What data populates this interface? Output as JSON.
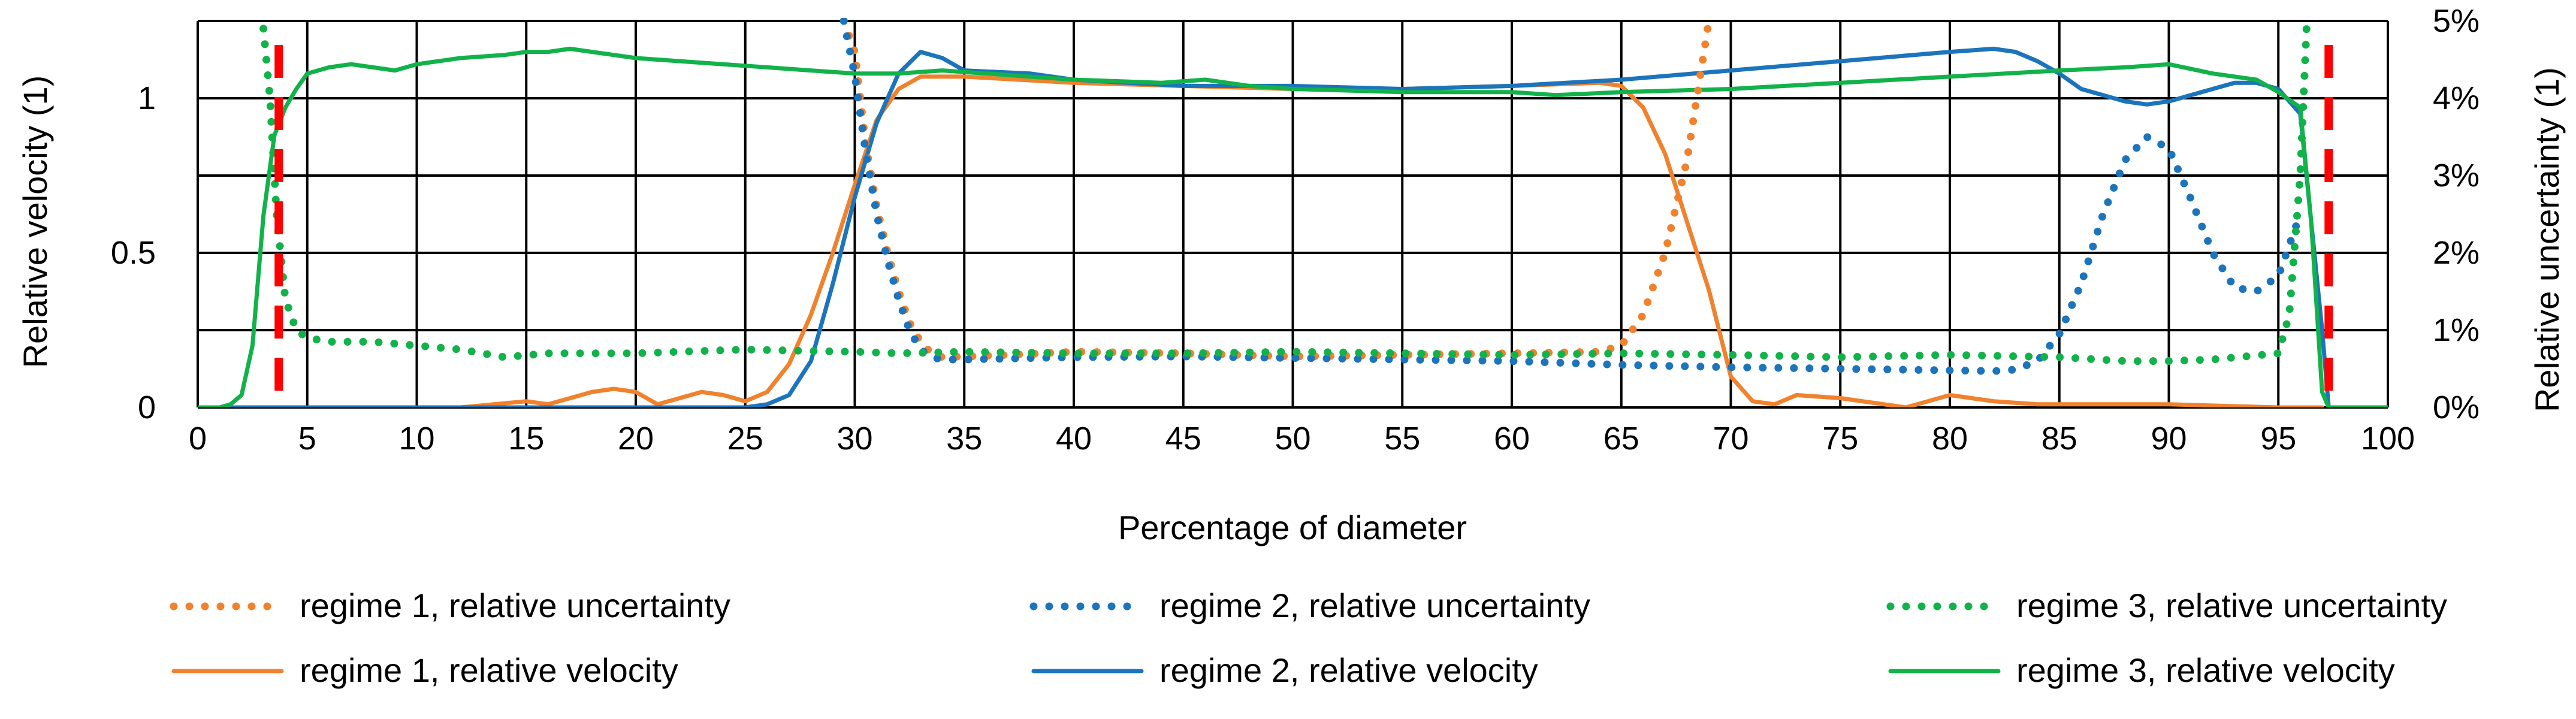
{
  "chart_data": {
    "type": "line",
    "title": "",
    "xlabel": "Percentage of diameter",
    "ylabel": "Relative velocity (1)",
    "y2label": "Relative uncertainty (1)",
    "xlim": [
      0,
      100
    ],
    "ylim": [
      0,
      1.25
    ],
    "y2lim": [
      0,
      5
    ],
    "x_ticks": [
      "0",
      "5",
      "10",
      "15",
      "20",
      "25",
      "30",
      "35",
      "40",
      "45",
      "50",
      "55",
      "60",
      "65",
      "70",
      "75",
      "80",
      "85",
      "90",
      "95",
      "100"
    ],
    "y_ticks": [
      "0",
      "0.5",
      "1"
    ],
    "y2_ticks": [
      "0%",
      "1%",
      "2%",
      "3%",
      "4%",
      "5%"
    ],
    "grid": true,
    "colors": {
      "regime1": "#F0822E",
      "regime2": "#1B74BC",
      "regime3": "#12B24A",
      "boundary": "#FF0000"
    },
    "boundary_lines_x": [
      3.7,
      97.3
    ],
    "legend": [
      "regime 1, relative uncertainty",
      "regime 2, relative uncertainty",
      "regime 3, relative uncertainty",
      "regime 1, relative velocity",
      "regime 2, relative velocity",
      "regime 3, relative velocity"
    ],
    "series": [
      {
        "name": "regime 1, relative velocity",
        "axis": "primary",
        "style": "solid",
        "color_key": "regime1",
        "x": [
          0,
          12,
          13.5,
          15,
          16,
          17,
          18,
          19,
          20,
          21,
          22,
          23,
          24,
          25,
          26,
          27,
          28,
          29,
          30,
          31,
          32,
          33,
          34,
          35,
          40,
          45,
          50,
          55,
          60,
          64,
          65,
          66,
          67,
          68,
          69,
          70,
          71,
          72,
          73,
          75,
          77,
          78,
          79,
          80,
          82,
          84,
          86,
          90,
          95,
          97
        ],
        "y": [
          0,
          0,
          0.01,
          0.02,
          0.01,
          0.03,
          0.05,
          0.06,
          0.05,
          0.01,
          0.03,
          0.05,
          0.04,
          0.02,
          0.05,
          0.14,
          0.3,
          0.5,
          0.72,
          0.93,
          1.03,
          1.07,
          1.07,
          1.07,
          1.05,
          1.04,
          1.03,
          1.03,
          1.04,
          1.05,
          1.04,
          0.97,
          0.82,
          0.6,
          0.38,
          0.1,
          0.02,
          0.01,
          0.04,
          0.03,
          0.01,
          0,
          0.02,
          0.04,
          0.02,
          0.01,
          0.01,
          0.01,
          0,
          0
        ]
      },
      {
        "name": "regime 2, relative velocity",
        "axis": "primary",
        "style": "solid",
        "color_key": "regime2",
        "x": [
          0,
          25,
          26,
          27,
          28,
          29,
          30,
          31,
          32,
          33,
          34,
          35,
          38,
          40,
          45,
          50,
          55,
          60,
          65,
          70,
          75,
          80,
          82,
          83,
          84,
          85,
          86,
          88,
          89,
          90,
          92,
          93,
          94,
          95,
          96,
          96.5,
          97,
          97.3
        ],
        "y": [
          0,
          0,
          0.01,
          0.04,
          0.15,
          0.4,
          0.68,
          0.92,
          1.08,
          1.15,
          1.13,
          1.09,
          1.08,
          1.06,
          1.04,
          1.04,
          1.03,
          1.04,
          1.06,
          1.09,
          1.12,
          1.15,
          1.16,
          1.15,
          1.12,
          1.08,
          1.03,
          0.99,
          0.98,
          0.99,
          1.03,
          1.05,
          1.05,
          1.03,
          0.95,
          0.6,
          0.25,
          0
        ]
      },
      {
        "name": "regime 3, relative velocity",
        "axis": "primary",
        "style": "solid",
        "color_key": "regime3",
        "x": [
          0,
          1,
          1.5,
          2,
          2.5,
          3,
          3.5,
          4,
          4.5,
          5,
          6,
          7,
          8,
          9,
          10,
          12,
          14,
          15,
          16,
          17,
          18,
          20,
          22,
          24,
          26,
          28,
          30,
          32,
          34,
          36,
          38,
          40,
          44,
          46,
          48,
          50,
          55,
          60,
          62,
          65,
          70,
          75,
          80,
          85,
          88,
          90,
          92,
          94,
          95,
          96,
          96.5,
          97,
          97.3,
          98,
          100
        ],
        "y": [
          0,
          0,
          0.01,
          0.04,
          0.2,
          0.62,
          0.88,
          0.97,
          1.03,
          1.08,
          1.1,
          1.11,
          1.1,
          1.09,
          1.11,
          1.13,
          1.14,
          1.15,
          1.15,
          1.16,
          1.15,
          1.13,
          1.12,
          1.11,
          1.1,
          1.09,
          1.08,
          1.08,
          1.09,
          1.08,
          1.07,
          1.06,
          1.05,
          1.06,
          1.04,
          1.03,
          1.02,
          1.02,
          1.01,
          1.02,
          1.03,
          1.05,
          1.07,
          1.09,
          1.1,
          1.11,
          1.08,
          1.06,
          1.02,
          0.97,
          0.6,
          0.05,
          0,
          0,
          0
        ]
      },
      {
        "name": "regime 1, relative uncertainty",
        "axis": "secondary",
        "style": "dotted",
        "color_key": "regime1",
        "x": [
          29.5,
          30,
          30.5,
          31,
          31.5,
          32,
          32.5,
          33,
          33.5,
          34,
          35,
          37,
          40,
          45,
          50,
          55,
          60,
          64,
          65,
          66,
          67,
          68,
          69
        ],
        "y": [
          5,
          4.6,
          3.4,
          2.6,
          2,
          1.5,
          1.1,
          0.85,
          0.7,
          0.65,
          0.66,
          0.68,
          0.72,
          0.7,
          0.66,
          0.68,
          0.7,
          0.72,
          0.8,
          1.2,
          2.0,
          3.2,
          5
        ]
      },
      {
        "name": "regime 2, relative uncertainty",
        "axis": "secondary",
        "style": "dotted",
        "color_key": "regime2",
        "x": [
          29.5,
          30,
          30.5,
          31,
          31.5,
          32,
          32.5,
          33,
          33.5,
          34,
          35,
          40,
          45,
          50,
          55,
          60,
          65,
          70,
          75,
          80,
          82,
          83,
          84,
          85,
          86,
          87,
          88,
          89,
          90,
          91,
          92,
          93,
          94,
          95,
          96
        ],
        "y": [
          5,
          4.3,
          3.3,
          2.5,
          1.9,
          1.4,
          1.0,
          0.75,
          0.65,
          0.62,
          0.62,
          0.65,
          0.66,
          0.64,
          0.62,
          0.6,
          0.55,
          0.52,
          0.5,
          0.48,
          0.47,
          0.49,
          0.6,
          0.95,
          1.6,
          2.5,
          3.2,
          3.5,
          3.35,
          2.7,
          2.0,
          1.55,
          1.5,
          1.7,
          2.5
        ]
      },
      {
        "name": "regime 3, relative uncertainty",
        "axis": "secondary",
        "style": "dotted",
        "color_key": "regime3",
        "x": [
          3,
          3.3,
          3.6,
          4,
          4.5,
          5,
          6,
          8,
          10,
          12,
          14,
          16,
          18,
          20,
          22,
          25,
          28,
          30,
          32,
          35,
          40,
          45,
          50,
          55,
          60,
          65,
          70,
          75,
          80,
          85,
          88,
          90,
          92,
          95,
          95.5,
          96,
          96.3
        ],
        "y": [
          4.9,
          4.0,
          2.5,
          1.4,
          1.0,
          0.9,
          0.85,
          0.85,
          0.8,
          0.75,
          0.65,
          0.7,
          0.7,
          0.7,
          0.72,
          0.75,
          0.73,
          0.72,
          0.7,
          0.72,
          0.7,
          0.7,
          0.72,
          0.7,
          0.68,
          0.7,
          0.68,
          0.65,
          0.68,
          0.65,
          0.6,
          0.6,
          0.62,
          0.7,
          1.2,
          3.0,
          5
        ]
      }
    ]
  }
}
